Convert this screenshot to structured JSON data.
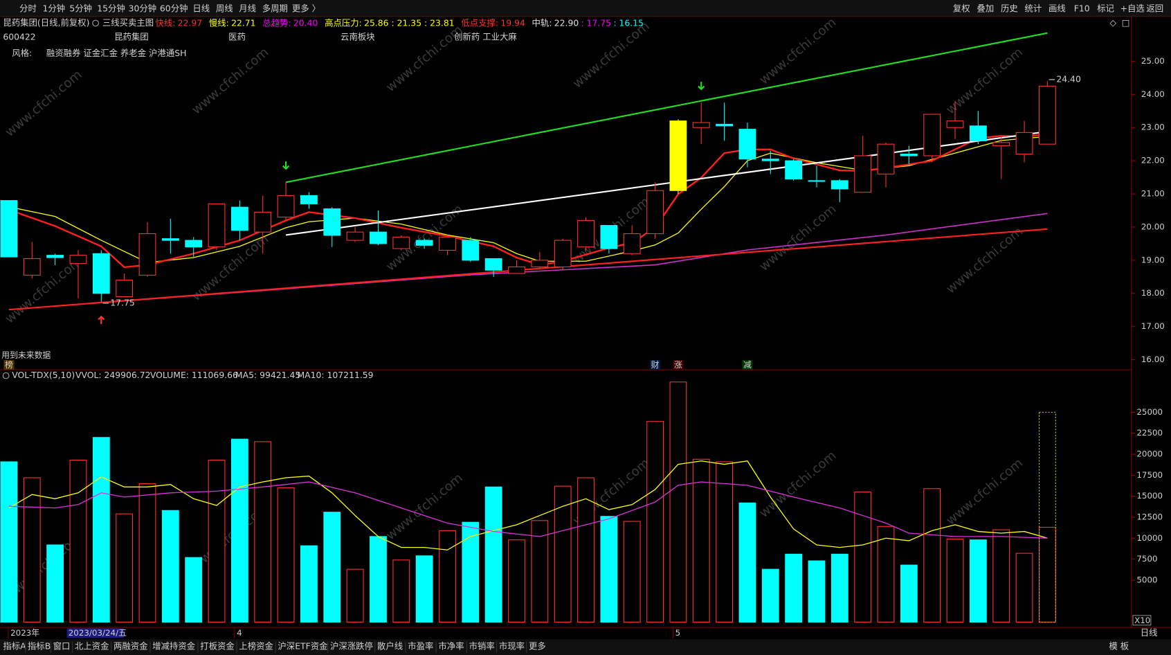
{
  "toolbar": {
    "left": [
      "分时",
      "1分钟",
      "5分钟",
      "15分钟",
      "30分钟",
      "60分钟",
      "日线",
      "周线",
      "月线",
      "多周期",
      "更多 〉"
    ],
    "right": [
      "复权",
      "叠加",
      "历史",
      "统计",
      "画线",
      "F10",
      "标记",
      "+自选",
      "返回"
    ]
  },
  "info": {
    "title": "昆药集团(日线,前复权)",
    "indicator": "三线买卖主图",
    "items": [
      {
        "label": "快线:",
        "color": "#ff3232",
        "values": [
          {
            "text": "22.97",
            "color": "#ff3232"
          }
        ]
      },
      {
        "label": "慢线:",
        "color": "#ffff00",
        "values": [
          {
            "text": "22.71",
            "color": "#ffff00"
          }
        ]
      },
      {
        "label": "总趋势:",
        "color": "#ff00ff",
        "values": [
          {
            "text": "20.40",
            "color": "#ff00ff"
          }
        ]
      },
      {
        "label": "高点压力:",
        "color": "#ffff00",
        "values": [
          {
            "text": "25.86 : 21.35 : 23.81",
            "color": "#ffff00"
          }
        ]
      },
      {
        "label": "低点支撑:",
        "color": "#ff3232",
        "values": [
          {
            "text": "19.94",
            "color": "#ff3232"
          }
        ]
      },
      {
        "label": "中轨:",
        "color": "#e0e0e0",
        "values": [
          {
            "text": "22.90",
            "color": "#e0e0e0"
          },
          {
            "text": ": 17.75",
            "color": "#ff00ff"
          },
          {
            "text": ": 16.15",
            "color": "#00ffff"
          }
        ]
      }
    ],
    "tags": [
      {
        "text": "600422",
        "color": "#00d000"
      },
      {
        "text": "昆药集团",
        "color": "#ff00ff"
      },
      {
        "text": "医药",
        "color": "#3399ff"
      },
      {
        "text": "云南板块",
        "color": "#ffff00"
      },
      {
        "text": "创新药 工业大麻",
        "color": "#00d000"
      }
    ],
    "style_label": "风格:",
    "style_text": "融资融券 证金汇金 养老金 沪港通SH",
    "style_color": "#00d000",
    "future_note": "用到未来数据",
    "watermark": "www.cfchi.com"
  },
  "chart_data": [
    {
      "type": "candlestick",
      "ylim": [
        15.7,
        26.35
      ],
      "yticks": [
        {
          "value": 16,
          "label": "16.00"
        },
        {
          "value": 17,
          "label": "17.00"
        },
        {
          "value": 18,
          "label": "18.00"
        },
        {
          "value": 19,
          "label": "19.00"
        },
        {
          "value": 20,
          "label": "20.00"
        },
        {
          "value": 21,
          "label": "21.00"
        },
        {
          "value": 22,
          "label": "22.00"
        },
        {
          "value": 23,
          "label": "23.00"
        },
        {
          "value": 24,
          "label": "24.00"
        },
        {
          "value": 25,
          "label": "25.00"
        }
      ],
      "up_color": "#ff3232",
      "open": [
        20.8,
        18.55,
        19.15,
        18.9,
        19.2,
        17.9,
        18.55,
        19.65,
        19.6,
        19.4,
        20.6,
        19.85,
        20.3,
        20.95,
        20.55,
        19.6,
        19.85,
        19.35,
        19.6,
        19.3,
        19.6,
        19.05,
        18.6,
        18.8,
        18.8,
        19.4,
        20.05,
        19.2,
        19.8,
        21.1,
        23.0,
        23.1,
        22.95,
        22.05,
        22.0,
        21.4,
        21.4,
        21.05,
        21.6,
        22.2,
        22.15,
        23.0,
        23.05,
        22.45,
        22.2,
        22.5
      ],
      "high": [
        20.8,
        19.55,
        19.2,
        19.3,
        19.3,
        18.6,
        20.15,
        20.25,
        19.7,
        20.7,
        20.8,
        20.95,
        21.35,
        21.05,
        20.6,
        20.0,
        20.5,
        19.75,
        19.65,
        19.75,
        19.7,
        19.05,
        19.0,
        19.25,
        19.65,
        20.3,
        20.05,
        20.05,
        21.35,
        23.25,
        23.75,
        23.75,
        23.15,
        22.3,
        22.05,
        21.85,
        21.45,
        22.75,
        22.55,
        22.45,
        23.4,
        23.8,
        23.5,
        22.75,
        23.2,
        24.4
      ],
      "low": [
        19.1,
        18.45,
        18.85,
        17.85,
        17.75,
        17.9,
        18.5,
        19.2,
        19.1,
        19.3,
        19.6,
        19.2,
        20.2,
        20.55,
        19.4,
        19.55,
        19.45,
        19.3,
        19.35,
        19.15,
        18.95,
        18.5,
        18.6,
        18.75,
        18.7,
        19.3,
        19.2,
        19.15,
        19.65,
        21.0,
        22.5,
        22.6,
        21.8,
        21.6,
        21.4,
        21.2,
        20.75,
        21.05,
        21.2,
        21.9,
        21.95,
        22.65,
        22.5,
        21.45,
        21.95,
        22.5
      ],
      "close": [
        19.1,
        19.05,
        19.08,
        19.15,
        18.0,
        18.4,
        19.8,
        19.6,
        19.4,
        20.7,
        19.9,
        20.45,
        20.95,
        20.7,
        19.75,
        19.85,
        19.5,
        19.7,
        19.45,
        19.7,
        19.0,
        18.7,
        18.8,
        19.0,
        19.6,
        20.2,
        19.35,
        19.8,
        21.1,
        23.2,
        23.15,
        23.05,
        22.05,
        22.0,
        21.45,
        21.38,
        21.15,
        22.15,
        22.5,
        22.15,
        23.4,
        23.2,
        22.6,
        22.55,
        22.85,
        24.25
      ],
      "candle_colors": [
        "#00ffff",
        "#ff3232",
        "#00ffff",
        "#ff3232",
        "#00ffff",
        "#ff3232",
        "#ff3232",
        "#00ffff",
        "#00ffff",
        "#ff3232",
        "#00ffff",
        "#ff3232",
        "#ff3232",
        "#00ffff",
        "#00ffff",
        "#ff3232",
        "#00ffff",
        "#ff3232",
        "#00ffff",
        "#ff3232",
        "#00ffff",
        "#00ffff",
        "#ff3232",
        "#ff3232",
        "#ff3232",
        "#ff3232",
        "#00ffff",
        "#ff3232",
        "#ff3232",
        "#ffff00",
        "#ff3232",
        "#00ffff",
        "#00ffff",
        "#00ffff",
        "#00ffff",
        "#00ffff",
        "#00ffff",
        "#ff3232",
        "#ff3232",
        "#00ffff",
        "#ff3232",
        "#ff3232",
        "#00ffff",
        "#ff3232",
        "#ff3232",
        "#ff3232"
      ],
      "categories": [
        "2023年",
        null,
        null,
        null,
        null,
        null,
        null,
        null,
        null,
        null,
        "4",
        null,
        null,
        null,
        null,
        null,
        null,
        null,
        null,
        null,
        null,
        null,
        null,
        null,
        null,
        null,
        null,
        null,
        null,
        "5",
        null,
        null,
        null,
        null,
        null,
        null,
        null,
        null,
        null,
        null,
        null,
        null,
        null,
        null,
        null,
        null
      ],
      "cursor": {
        "label": "2023/03/24/五",
        "x": 5
      },
      "lines": [
        {
          "color": "#ffff00",
          "width": 1.2,
          "x": [
            0,
            2,
            4,
            6,
            8,
            10,
            12,
            13,
            15,
            17,
            19,
            21,
            22,
            23,
            25,
            27,
            28,
            29,
            30,
            31,
            32,
            33,
            35,
            37,
            39,
            41,
            43,
            45
          ],
          "values": [
            20.61,
            20.32,
            19.6,
            18.93,
            19.08,
            19.42,
            19.98,
            20.16,
            20.27,
            20.09,
            19.76,
            19.53,
            19.2,
            18.97,
            18.97,
            19.28,
            19.46,
            19.82,
            20.54,
            21.22,
            22.0,
            22.23,
            21.94,
            21.71,
            21.85,
            22.23,
            22.61,
            22.73
          ]
        },
        {
          "color": "#ff2020",
          "width": 2.2,
          "x": [
            0,
            2,
            4,
            5,
            6,
            8,
            10,
            12,
            13,
            15,
            17,
            19,
            21,
            22,
            23,
            24,
            26,
            27,
            28,
            29,
            30,
            31,
            32,
            33,
            34,
            36,
            37,
            38,
            40,
            41,
            42,
            43,
            44,
            45
          ],
          "values": [
            20.52,
            20.03,
            19.42,
            18.79,
            18.86,
            19.2,
            19.6,
            20.2,
            20.45,
            20.27,
            19.98,
            19.73,
            19.42,
            19.08,
            18.86,
            18.97,
            19.37,
            19.53,
            19.98,
            20.99,
            21.49,
            22.23,
            22.34,
            22.34,
            22.07,
            21.71,
            21.69,
            21.78,
            22.0,
            22.34,
            22.68,
            22.75,
            22.73,
            22.8
          ]
        },
        {
          "color": "#ffffff",
          "width": 2,
          "x": [
            12,
            45
          ],
          "values": [
            19.76,
            22.88
          ]
        },
        {
          "color": "#22dd22",
          "width": 2,
          "x": [
            12,
            45
          ],
          "values": [
            21.35,
            25.85
          ]
        },
        {
          "color": "#cc33cc",
          "width": 1.5,
          "x": [
            0,
            20,
            28,
            32,
            38,
            45
          ],
          "values": [
            17.51,
            18.56,
            18.86,
            19.31,
            19.76,
            20.41
          ]
        },
        {
          "color": "#ff2020",
          "width": 2,
          "x": [
            0,
            45
          ],
          "values": [
            17.51,
            19.94
          ]
        }
      ],
      "annotations": [
        {
          "x": 45,
          "value": 24.4,
          "label": "24.40"
        },
        {
          "x": 4,
          "value": 17.75,
          "label": "17.75"
        }
      ],
      "signals": [
        {
          "x": 12,
          "direction": "down",
          "color": "#22dd22"
        },
        {
          "x": 30,
          "direction": "down",
          "color": "#22dd22"
        },
        {
          "x": 4,
          "direction": "up",
          "color": "#ff3232"
        }
      ],
      "markers": [
        {
          "x": 0,
          "text": "榜",
          "color": "#ff9900",
          "bg": "#553300"
        },
        {
          "x": 28,
          "text": "财",
          "color": "#66aaff",
          "bg": "#001a40"
        },
        {
          "x": 29,
          "text": "涨",
          "color": "#ff4040",
          "bg": "#400000"
        },
        {
          "x": 32,
          "text": "减",
          "color": "#66ff66",
          "bg": "#003300"
        }
      ]
    },
    {
      "type": "volume",
      "header": [
        {
          "text": "VOL-TDX(5,10)",
          "color": "#e0e0e0"
        },
        {
          "text": "VVOL: 249906.72",
          "color": "#e0e0e0"
        },
        {
          "text": "VOLUME: 111069.66",
          "color": "#ffff00"
        },
        {
          "text": "MA5: 99421.45",
          "color": "#ffff00"
        },
        {
          "text": "MA10: 107211.59",
          "color": "#ff00ff"
        }
      ],
      "ylim": [
        0,
        29000
      ],
      "yticks": [
        5000,
        7500,
        10000,
        12500,
        15000,
        17500,
        20000,
        22500,
        25000
      ],
      "up_color": "#ff3232",
      "values": [
        19100,
        17200,
        9200,
        19300,
        22000,
        12900,
        16500,
        13300,
        7700,
        19300,
        21800,
        21500,
        16000,
        9100,
        13100,
        6300,
        10200,
        7400,
        7900,
        10900,
        11900,
        16100,
        9800,
        12100,
        16200,
        17200,
        12600,
        12000,
        23900,
        28600,
        19400,
        19100,
        14200,
        6300,
        8100,
        7300,
        8100,
        15500,
        11400,
        6800,
        15900,
        9900,
        9800,
        11000,
        8200,
        11300
      ],
      "volume_colors": [
        "#00ffff",
        "#ff3232",
        "#00ffff",
        "#ff3232",
        "#00ffff",
        "#ff3232",
        "#ff3232",
        "#00ffff",
        "#00ffff",
        "#ff3232",
        "#00ffff",
        "#ff3232",
        "#ff3232",
        "#00ffff",
        "#00ffff",
        "#ff3232",
        "#00ffff",
        "#ff3232",
        "#00ffff",
        "#ff3232",
        "#00ffff",
        "#00ffff",
        "#ff3232",
        "#ff3232",
        "#ff3232",
        "#ff3232",
        "#00ffff",
        "#ff3232",
        "#ff3232",
        "#ff3232",
        "#ff3232",
        "#ff3232",
        "#00ffff",
        "#00ffff",
        "#00ffff",
        "#00ffff",
        "#00ffff",
        "#ff3232",
        "#ff3232",
        "#00ffff",
        "#ff3232",
        "#ff3232",
        "#00ffff",
        "#ff3232",
        "#ff3232",
        "#ff3232"
      ],
      "projection": {
        "x": 45,
        "value": 25000,
        "color": "#cccc00"
      },
      "lines": [
        {
          "color": "#ffff00",
          "width": 1.2,
          "x": [
            0,
            1,
            2,
            3,
            4,
            5,
            6,
            7,
            8,
            9,
            10,
            11,
            12,
            13,
            14,
            15,
            16,
            17,
            18,
            19,
            20,
            21,
            22,
            23,
            24,
            25,
            26,
            27,
            28,
            29,
            30,
            31,
            32,
            33,
            34,
            35,
            36,
            37,
            38,
            39,
            40,
            41,
            42,
            43,
            44,
            45
          ],
          "values": [
            13600,
            15200,
            14700,
            15400,
            17300,
            16100,
            16100,
            16400,
            14700,
            13900,
            16100,
            16700,
            17200,
            17400,
            15400,
            12700,
            10200,
            8900,
            8900,
            8600,
            10200,
            10900,
            11600,
            12700,
            13800,
            14700,
            13400,
            14000,
            15800,
            18800,
            19200,
            18800,
            19200,
            14900,
            11100,
            9200,
            8900,
            9200,
            10000,
            9700,
            10900,
            11600,
            10800,
            10600,
            10800,
            10000
          ]
        },
        {
          "color": "#dd33dd",
          "width": 1.2,
          "x": [
            0,
            2,
            3,
            4,
            5,
            7,
            9,
            11,
            12,
            13,
            15,
            17,
            19,
            21,
            23,
            24,
            26,
            28,
            29,
            30,
            32,
            34,
            36,
            38,
            39,
            41,
            43,
            45
          ],
          "values": [
            13800,
            13600,
            14000,
            15400,
            14900,
            15400,
            15600,
            16100,
            16400,
            16700,
            15400,
            13600,
            11800,
            10800,
            10200,
            10900,
            12300,
            14300,
            16300,
            16700,
            16300,
            14900,
            13600,
            11800,
            10600,
            10200,
            10200,
            10000
          ]
        }
      ],
      "scale_note": "X10"
    }
  ],
  "bottom": {
    "tabs": [
      "指标A",
      "指标B",
      "窗口",
      "北上资金",
      "两融资金",
      "增减持资金",
      "打板资金",
      "上榜资金",
      "沪深ETF资金",
      "沪深涨跌停",
      "散户线",
      "市盈率",
      "市净率",
      "市销率",
      "市现率",
      "更多"
    ],
    "template": "模 板",
    "period": "日线"
  }
}
